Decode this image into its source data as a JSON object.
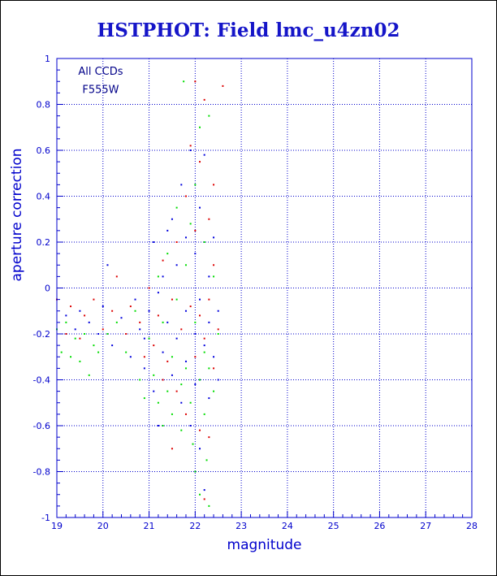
{
  "colors": {
    "title": "#1515c8",
    "axis": "#0000cc",
    "grid": "#0000cc",
    "series_blue": "#0000dd",
    "series_red": "#dd0000",
    "series_green": "#00dd00",
    "text": "#000088"
  },
  "chart_data": {
    "type": "scatter",
    "title": "HSTPHOT: Field lmc_u4zn02",
    "xlabel": "magnitude",
    "ylabel": "aperture correction",
    "xlim": [
      19,
      28
    ],
    "ylim": [
      -1,
      1
    ],
    "x_ticks": [
      19,
      20,
      21,
      22,
      23,
      24,
      25,
      26,
      27,
      28
    ],
    "y_ticks": [
      -1,
      -0.8,
      -0.6,
      -0.4,
      -0.2,
      0,
      0.2,
      0.4,
      0.6,
      0.8,
      1
    ],
    "y_tick_labels": [
      "-1",
      "-0.8",
      "-0.6",
      "-0.4",
      "-0.2",
      "0",
      "0.2",
      "0.4",
      "0.6",
      "0.8",
      "1"
    ],
    "grid": true,
    "annotations": [
      "All CCDs",
      "F555W"
    ],
    "series": [
      {
        "color": "blue",
        "points": [
          [
            19.2,
            -0.12
          ],
          [
            19.4,
            -0.18
          ],
          [
            19.5,
            -0.1
          ],
          [
            19.7,
            -0.15
          ],
          [
            19.9,
            -0.2
          ],
          [
            20.0,
            -0.08
          ],
          [
            20.1,
            0.1
          ],
          [
            20.2,
            -0.25
          ],
          [
            20.4,
            -0.13
          ],
          [
            20.6,
            -0.3
          ],
          [
            20.7,
            -0.05
          ],
          [
            20.8,
            -0.18
          ],
          [
            20.9,
            -0.35
          ],
          [
            21.0,
            -0.1
          ],
          [
            21.1,
            0.2
          ],
          [
            21.1,
            -0.45
          ],
          [
            21.2,
            -0.02
          ],
          [
            21.3,
            -0.28
          ],
          [
            21.3,
            0.05
          ],
          [
            21.4,
            -0.15
          ],
          [
            21.5,
            -0.38
          ],
          [
            21.5,
            0.3
          ],
          [
            21.6,
            -0.22
          ],
          [
            21.6,
            0.1
          ],
          [
            21.7,
            -0.5
          ],
          [
            21.7,
            0.45
          ],
          [
            21.8,
            -0.1
          ],
          [
            21.8,
            -0.32
          ],
          [
            21.9,
            0.6
          ],
          [
            21.9,
            -0.6
          ],
          [
            22.0,
            -0.2
          ],
          [
            22.0,
            0.15
          ],
          [
            22.0,
            -0.42
          ],
          [
            22.1,
            -0.05
          ],
          [
            22.1,
            -0.7
          ],
          [
            22.1,
            0.35
          ],
          [
            22.2,
            -0.25
          ],
          [
            22.2,
            0.58
          ],
          [
            22.3,
            -0.15
          ],
          [
            22.3,
            -0.48
          ],
          [
            22.3,
            0.05
          ],
          [
            22.4,
            -0.3
          ],
          [
            22.4,
            0.22
          ],
          [
            22.5,
            -0.1
          ],
          [
            22.5,
            -0.4
          ],
          [
            21.2,
            -0.6
          ],
          [
            21.4,
            0.25
          ],
          [
            20.9,
            -0.22
          ],
          [
            21.8,
            0.22
          ],
          [
            22.2,
            -0.88
          ]
        ]
      },
      {
        "color": "red",
        "points": [
          [
            19.0,
            -0.05
          ],
          [
            19.2,
            -0.2
          ],
          [
            19.3,
            -0.08
          ],
          [
            19.5,
            -0.22
          ],
          [
            19.6,
            -0.12
          ],
          [
            19.8,
            -0.05
          ],
          [
            20.0,
            -0.18
          ],
          [
            20.2,
            -0.1
          ],
          [
            20.3,
            0.05
          ],
          [
            20.5,
            -0.2
          ],
          [
            20.6,
            -0.08
          ],
          [
            20.8,
            -0.15
          ],
          [
            21.0,
            0.0
          ],
          [
            21.1,
            -0.25
          ],
          [
            21.2,
            -0.12
          ],
          [
            21.3,
            0.12
          ],
          [
            21.4,
            -0.32
          ],
          [
            21.5,
            -0.05
          ],
          [
            21.6,
            0.2
          ],
          [
            21.6,
            -0.45
          ],
          [
            21.7,
            -0.18
          ],
          [
            21.8,
            0.4
          ],
          [
            21.8,
            -0.55
          ],
          [
            21.9,
            -0.08
          ],
          [
            22.0,
            0.9
          ],
          [
            22.0,
            -0.3
          ],
          [
            22.0,
            0.25
          ],
          [
            22.1,
            -0.12
          ],
          [
            22.1,
            0.55
          ],
          [
            22.1,
            -0.62
          ],
          [
            22.2,
            -0.22
          ],
          [
            22.2,
            0.82
          ],
          [
            22.3,
            -0.05
          ],
          [
            22.3,
            0.3
          ],
          [
            22.3,
            -0.65
          ],
          [
            22.4,
            -0.35
          ],
          [
            22.4,
            0.1
          ],
          [
            22.5,
            -0.18
          ],
          [
            22.6,
            0.88
          ],
          [
            21.5,
            -0.7
          ],
          [
            21.3,
            -0.4
          ],
          [
            20.9,
            -0.3
          ],
          [
            21.9,
            0.62
          ],
          [
            22.2,
            -0.92
          ],
          [
            22.4,
            0.45
          ]
        ]
      },
      {
        "color": "green",
        "points": [
          [
            19.0,
            -0.18
          ],
          [
            19.1,
            -0.28
          ],
          [
            19.2,
            -0.15
          ],
          [
            19.3,
            -0.3
          ],
          [
            19.4,
            -0.22
          ],
          [
            19.5,
            -0.32
          ],
          [
            19.6,
            -0.2
          ],
          [
            19.7,
            -0.38
          ],
          [
            19.8,
            -0.25
          ],
          [
            19.9,
            -0.28
          ],
          [
            20.1,
            -0.2
          ],
          [
            20.3,
            -0.15
          ],
          [
            20.5,
            -0.28
          ],
          [
            20.7,
            -0.1
          ],
          [
            20.8,
            -0.4
          ],
          [
            21.0,
            -0.22
          ],
          [
            21.1,
            -0.38
          ],
          [
            21.2,
            -0.5
          ],
          [
            21.2,
            0.05
          ],
          [
            21.3,
            -0.15
          ],
          [
            21.4,
            -0.45
          ],
          [
            21.4,
            0.15
          ],
          [
            21.5,
            -0.3
          ],
          [
            21.5,
            -0.55
          ],
          [
            21.6,
            -0.05
          ],
          [
            21.6,
            0.35
          ],
          [
            21.7,
            -0.42
          ],
          [
            21.7,
            -0.62
          ],
          [
            21.75,
            0.9
          ],
          [
            21.8,
            0.1
          ],
          [
            21.8,
            -0.35
          ],
          [
            21.9,
            -0.5
          ],
          [
            21.9,
            0.28
          ],
          [
            22.0,
            -0.15
          ],
          [
            22.0,
            -0.8
          ],
          [
            22.0,
            0.45
          ],
          [
            22.1,
            -0.4
          ],
          [
            22.1,
            0.7
          ],
          [
            22.1,
            -0.9
          ],
          [
            22.2,
            -0.28
          ],
          [
            22.2,
            0.2
          ],
          [
            22.2,
            -0.55
          ],
          [
            22.3,
            0.75
          ],
          [
            22.3,
            -0.35
          ],
          [
            22.3,
            -0.95
          ],
          [
            22.4,
            0.05
          ],
          [
            22.4,
            -0.45
          ],
          [
            22.5,
            -0.2
          ],
          [
            21.3,
            -0.6
          ],
          [
            20.9,
            -0.48
          ],
          [
            22.25,
            -0.75
          ],
          [
            21.95,
            -0.68
          ]
        ]
      }
    ]
  }
}
